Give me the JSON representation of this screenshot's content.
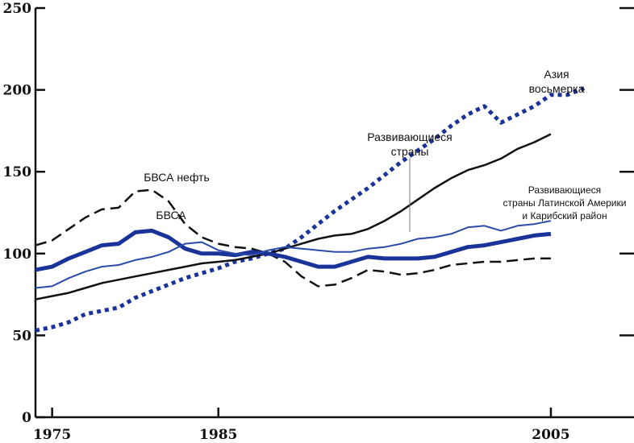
{
  "chart_data": {
    "type": "line",
    "title": "",
    "xlabel": "",
    "ylabel": "",
    "xlim": [
      1974,
      2010
    ],
    "ylim": [
      0,
      250
    ],
    "x_ticks": [
      1975,
      1985,
      2005
    ],
    "y_ticks": [
      0,
      50,
      100,
      150,
      200,
      250
    ],
    "grid": false,
    "legend": "none",
    "series": [
      {
        "color": "#1a3399",
        "style": "dotted-thick",
        "points": [
          [
            1974,
            53
          ],
          [
            1975,
            55
          ],
          [
            1976,
            58
          ],
          [
            1977,
            63
          ],
          [
            1978,
            65
          ],
          [
            1979,
            67
          ],
          [
            1980,
            73
          ],
          [
            1981,
            77
          ],
          [
            1982,
            81
          ],
          [
            1983,
            85
          ],
          [
            1984,
            88
          ],
          [
            1985,
            91
          ],
          [
            1986,
            95
          ],
          [
            1987,
            97
          ],
          [
            1988,
            100
          ],
          [
            1989,
            103
          ],
          [
            1990,
            110
          ],
          [
            1991,
            118
          ],
          [
            1992,
            126
          ],
          [
            1993,
            133
          ],
          [
            1994,
            140
          ],
          [
            1995,
            148
          ],
          [
            1996,
            156
          ],
          [
            1997,
            163
          ],
          [
            1998,
            170
          ],
          [
            1999,
            178
          ],
          [
            2000,
            185
          ],
          [
            2001,
            190
          ],
          [
            2002,
            180
          ],
          [
            2003,
            185
          ],
          [
            2004,
            190
          ],
          [
            2005,
            197
          ],
          [
            2006,
            197
          ],
          [
            2007,
            201
          ]
        ]
      },
      {
        "color": "#111111",
        "style": "solid-medium",
        "points": [
          [
            1974,
            72
          ],
          [
            1975,
            74
          ],
          [
            1976,
            76
          ],
          [
            1977,
            79
          ],
          [
            1978,
            82
          ],
          [
            1979,
            84
          ],
          [
            1980,
            86
          ],
          [
            1981,
            88
          ],
          [
            1982,
            90
          ],
          [
            1983,
            92
          ],
          [
            1984,
            94
          ],
          [
            1985,
            95
          ],
          [
            1986,
            96
          ],
          [
            1987,
            98
          ],
          [
            1988,
            100
          ],
          [
            1989,
            103
          ],
          [
            1990,
            106
          ],
          [
            1991,
            109
          ],
          [
            1992,
            111
          ],
          [
            1993,
            112
          ],
          [
            1994,
            115
          ],
          [
            1995,
            120
          ],
          [
            1996,
            126
          ],
          [
            1997,
            133
          ],
          [
            1998,
            140
          ],
          [
            1999,
            146
          ],
          [
            2000,
            151
          ],
          [
            2001,
            154
          ],
          [
            2002,
            158
          ],
          [
            2003,
            164
          ],
          [
            2004,
            168
          ],
          [
            2005,
            173
          ]
        ]
      },
      {
        "color": "#111111",
        "style": "dashed",
        "points": [
          [
            1974,
            105
          ],
          [
            1975,
            108
          ],
          [
            1976,
            115
          ],
          [
            1977,
            122
          ],
          [
            1978,
            127
          ],
          [
            1979,
            128
          ],
          [
            1980,
            138
          ],
          [
            1981,
            139
          ],
          [
            1982,
            132
          ],
          [
            1983,
            118
          ],
          [
            1984,
            110
          ],
          [
            1985,
            106
          ],
          [
            1986,
            104
          ],
          [
            1987,
            103
          ],
          [
            1988,
            100
          ],
          [
            1989,
            95
          ],
          [
            1990,
            86
          ],
          [
            1991,
            80
          ],
          [
            1992,
            81
          ],
          [
            1993,
            85
          ],
          [
            1994,
            90
          ],
          [
            1995,
            89
          ],
          [
            1996,
            87
          ],
          [
            1997,
            88
          ],
          [
            1998,
            90
          ],
          [
            1999,
            93
          ],
          [
            2000,
            94
          ],
          [
            2001,
            95
          ],
          [
            2002,
            95
          ],
          [
            2003,
            96
          ],
          [
            2004,
            97
          ],
          [
            2005,
            97
          ]
        ]
      },
      {
        "color": "#1a3399",
        "style": "solid-thick",
        "points": [
          [
            1974,
            90
          ],
          [
            1975,
            92
          ],
          [
            1976,
            97
          ],
          [
            1977,
            101
          ],
          [
            1978,
            105
          ],
          [
            1979,
            106
          ],
          [
            1980,
            113
          ],
          [
            1981,
            114
          ],
          [
            1982,
            110
          ],
          [
            1983,
            103
          ],
          [
            1984,
            100
          ],
          [
            1985,
            100
          ],
          [
            1986,
            99
          ],
          [
            1987,
            101
          ],
          [
            1988,
            100
          ],
          [
            1989,
            98
          ],
          [
            1990,
            95
          ],
          [
            1991,
            92
          ],
          [
            1992,
            92
          ],
          [
            1993,
            95
          ],
          [
            1994,
            98
          ],
          [
            1995,
            97
          ],
          [
            1996,
            97
          ],
          [
            1997,
            97
          ],
          [
            1998,
            98
          ],
          [
            1999,
            101
          ],
          [
            2000,
            104
          ],
          [
            2001,
            105
          ],
          [
            2002,
            107
          ],
          [
            2003,
            109
          ],
          [
            2004,
            111
          ],
          [
            2005,
            112
          ]
        ]
      },
      {
        "color": "#2a4aaa",
        "style": "solid-thin",
        "points": [
          [
            1974,
            79
          ],
          [
            1975,
            80
          ],
          [
            1976,
            85
          ],
          [
            1977,
            89
          ],
          [
            1978,
            92
          ],
          [
            1979,
            93
          ],
          [
            1980,
            96
          ],
          [
            1981,
            98
          ],
          [
            1982,
            101
          ],
          [
            1983,
            106
          ],
          [
            1984,
            107
          ],
          [
            1985,
            102
          ],
          [
            1986,
            100
          ],
          [
            1987,
            99
          ],
          [
            1988,
            102
          ],
          [
            1989,
            104
          ],
          [
            1990,
            103
          ],
          [
            1991,
            102
          ],
          [
            1992,
            101
          ],
          [
            1993,
            101
          ],
          [
            1994,
            103
          ],
          [
            1995,
            104
          ],
          [
            1996,
            106
          ],
          [
            1997,
            109
          ],
          [
            1998,
            110
          ],
          [
            1999,
            112
          ],
          [
            2000,
            116
          ],
          [
            2001,
            117
          ],
          [
            2002,
            114
          ],
          [
            2003,
            117
          ],
          [
            2004,
            118
          ],
          [
            2005,
            120
          ]
        ]
      }
    ],
    "annotations": {
      "asia_line1": "Азия",
      "asia_line2": "восьмерка",
      "developing_line1": "Развивающиеся",
      "developing_line2": "страны",
      "latam_line1": "Развивающиеся",
      "latam_line2": "страны Латинской Америки",
      "latam_line3": "и Карибский район",
      "mena_oil": "БВСА нефть",
      "mena": "БВСА"
    }
  }
}
